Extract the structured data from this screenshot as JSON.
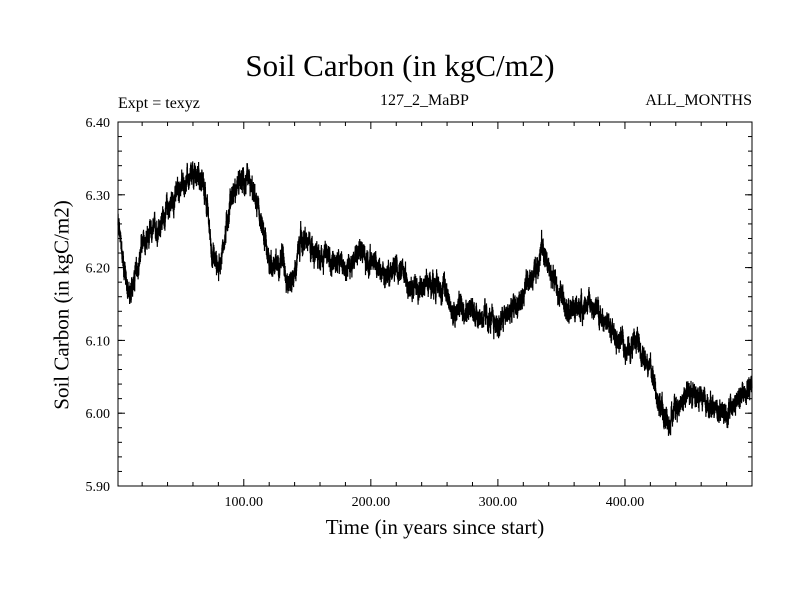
{
  "chart_data": {
    "type": "line",
    "title": "Soil Carbon (in kgC/m2)",
    "subtitle_left": "Expt = texyz",
    "subtitle_center": "127_2_MaBP",
    "subtitle_right": "ALL_MONTHS",
    "xlabel": "Time (in years since start)",
    "ylabel": "Soil Carbon (in kgC/m2)",
    "xlim": [
      1,
      500
    ],
    "ylim": [
      5.9,
      6.4
    ],
    "xticks": [
      100,
      200,
      300,
      400
    ],
    "xtick_labels": [
      "100.00",
      "200.00",
      "300.00",
      "400.00"
    ],
    "yticks": [
      5.9,
      6.0,
      6.1,
      6.2,
      6.3,
      6.4
    ],
    "ytick_labels": [
      "5.90",
      "6.00",
      "6.10",
      "6.20",
      "6.30",
      "6.40"
    ],
    "grid": false,
    "line_color": "#000000",
    "series": [
      {
        "x": [
          1,
          5,
          10,
          15,
          20,
          30,
          40,
          50,
          55,
          60,
          65,
          70,
          75,
          80,
          85,
          90,
          95,
          100,
          105,
          110,
          115,
          120,
          125,
          130,
          135,
          140,
          145,
          150,
          160,
          170,
          180,
          190,
          200,
          210,
          220,
          230,
          240,
          250,
          260,
          265,
          270,
          280,
          290,
          300,
          310,
          320,
          330,
          335,
          340,
          350,
          360,
          370,
          380,
          390,
          400,
          410,
          420,
          430,
          435,
          440,
          450,
          460,
          470,
          480,
          490,
          500
        ],
        "y": [
          6.26,
          6.21,
          6.16,
          6.19,
          6.23,
          6.25,
          6.28,
          6.31,
          6.32,
          6.32,
          6.33,
          6.3,
          6.22,
          6.2,
          6.24,
          6.3,
          6.31,
          6.32,
          6.31,
          6.29,
          6.25,
          6.21,
          6.2,
          6.22,
          6.18,
          6.19,
          6.24,
          6.23,
          6.22,
          6.21,
          6.2,
          6.22,
          6.21,
          6.19,
          6.2,
          6.18,
          6.17,
          6.18,
          6.17,
          6.13,
          6.15,
          6.14,
          6.13,
          6.12,
          6.14,
          6.16,
          6.2,
          6.23,
          6.2,
          6.16,
          6.14,
          6.15,
          6.14,
          6.11,
          6.09,
          6.1,
          6.06,
          6.0,
          5.98,
          6.01,
          6.03,
          6.02,
          6.01,
          6.0,
          6.02,
          6.04
        ]
      }
    ]
  }
}
